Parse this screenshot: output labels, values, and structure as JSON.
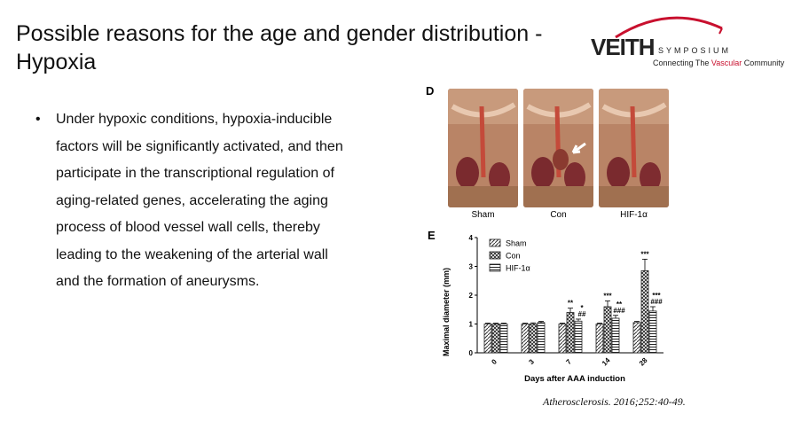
{
  "slide": {
    "title": "Possible reasons for the age and gender distribution - Hypoxia",
    "bullets": [
      "Under hypoxic conditions, hypoxia-inducible factors will be significantly activated, and then participate in the transcriptional regulation of aging-related genes, accelerating the aging process of blood vessel wall cells, thereby leading to the weakening of the arterial wall and the formation of aneurysms."
    ],
    "citation": "Atherosclerosis. 2016;252:40-49."
  },
  "logo": {
    "main": "VEITH",
    "sub": "SYMPOSIUM",
    "tag_prefix": "Connecting The ",
    "tag_highlight": "Vascular",
    "tag_suffix": " Community",
    "accent_color": "#c8102e"
  },
  "figure": {
    "panel_d_label": "D",
    "panel_e_label": "E",
    "photos": [
      {
        "caption": "Sham"
      },
      {
        "caption": "Con"
      },
      {
        "caption": "HIF-1α"
      }
    ]
  },
  "chart_data": {
    "type": "bar",
    "title": "",
    "xlabel": "Days after AAA induction",
    "ylabel": "Maximal diameter (mm)",
    "categories": [
      "0",
      "3",
      "7",
      "14",
      "28"
    ],
    "ylim": [
      0,
      4
    ],
    "yticks": [
      "0",
      "1",
      "2",
      "3",
      "4"
    ],
    "legend_position": "top-left",
    "series": [
      {
        "name": "Sham",
        "values": [
          1.0,
          1.0,
          1.0,
          1.0,
          1.05
        ],
        "errors": [
          0.03,
          0.03,
          0.03,
          0.03,
          0.04
        ]
      },
      {
        "name": "Con",
        "values": [
          1.0,
          1.0,
          1.4,
          1.6,
          2.85
        ],
        "errors": [
          0.03,
          0.04,
          0.15,
          0.2,
          0.4
        ]
      },
      {
        "name": "HIF-1α",
        "values": [
          1.0,
          1.05,
          1.1,
          1.2,
          1.45
        ],
        "errors": [
          0.03,
          0.04,
          0.07,
          0.1,
          0.15
        ]
      }
    ],
    "annotations": [
      {
        "category": "7",
        "series": "Con",
        "text": "**"
      },
      {
        "category": "7",
        "series": "HIF-1α",
        "text": "##"
      },
      {
        "category": "7",
        "series": "HIF-1α",
        "text": "*"
      },
      {
        "category": "14",
        "series": "Con",
        "text": "***"
      },
      {
        "category": "14",
        "series": "HIF-1α",
        "text": "###"
      },
      {
        "category": "14",
        "series": "HIF-1α",
        "text": "**"
      },
      {
        "category": "28",
        "series": "Con",
        "text": "***"
      },
      {
        "category": "28",
        "series": "HIF-1α",
        "text": "###"
      },
      {
        "category": "28",
        "series": "HIF-1α",
        "text": "***"
      }
    ]
  }
}
